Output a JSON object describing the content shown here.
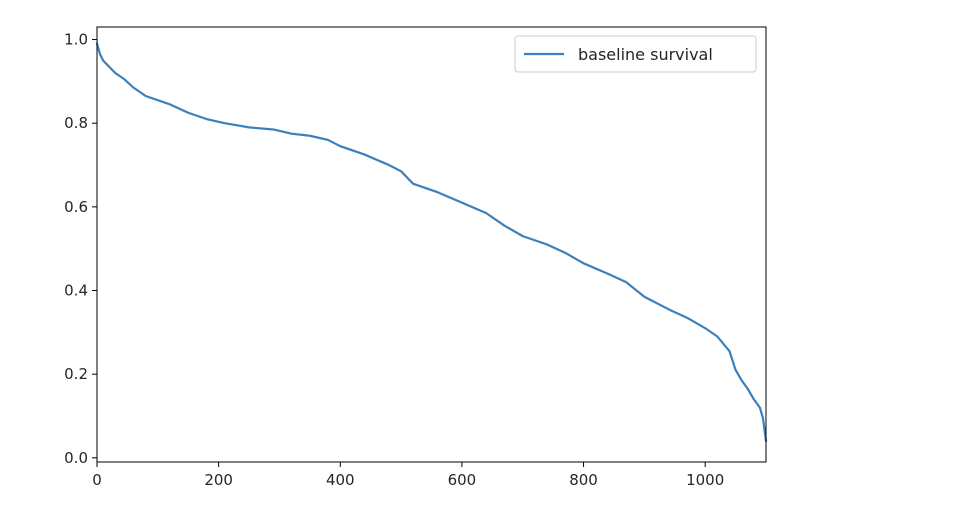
{
  "chart_data": {
    "type": "line",
    "title": "",
    "xlabel": "",
    "ylabel": "",
    "xlim": [
      0,
      1100
    ],
    "ylim": [
      -0.01,
      1.03
    ],
    "x_ticks": [
      0,
      200,
      400,
      600,
      800,
      1000
    ],
    "y_ticks": [
      0.0,
      0.2,
      0.4,
      0.6,
      0.8,
      1.0
    ],
    "x_tick_labels": [
      "0",
      "200",
      "400",
      "600",
      "800",
      "1000"
    ],
    "y_tick_labels": [
      "0.0",
      "0.2",
      "0.4",
      "0.6",
      "0.8",
      "1.0"
    ],
    "grid": false,
    "legend_position": "top-right",
    "series": [
      {
        "name": "baseline survival",
        "color": "#3b80bd",
        "x": [
          0,
          5,
          10,
          20,
          30,
          45,
          60,
          80,
          100,
          120,
          150,
          180,
          210,
          250,
          290,
          320,
          350,
          380,
          400,
          440,
          480,
          500,
          520,
          560,
          600,
          640,
          670,
          700,
          740,
          770,
          800,
          840,
          870,
          900,
          940,
          970,
          1000,
          1020,
          1040,
          1050,
          1060,
          1070,
          1080,
          1090,
          1095,
          1100
        ],
        "y": [
          0.99,
          0.965,
          0.95,
          0.935,
          0.92,
          0.905,
          0.885,
          0.865,
          0.855,
          0.845,
          0.825,
          0.81,
          0.8,
          0.79,
          0.785,
          0.775,
          0.77,
          0.76,
          0.745,
          0.725,
          0.7,
          0.685,
          0.655,
          0.635,
          0.61,
          0.585,
          0.555,
          0.53,
          0.51,
          0.49,
          0.465,
          0.44,
          0.42,
          0.385,
          0.355,
          0.335,
          0.31,
          0.29,
          0.255,
          0.21,
          0.185,
          0.165,
          0.14,
          0.12,
          0.095,
          0.04
        ]
      }
    ]
  }
}
